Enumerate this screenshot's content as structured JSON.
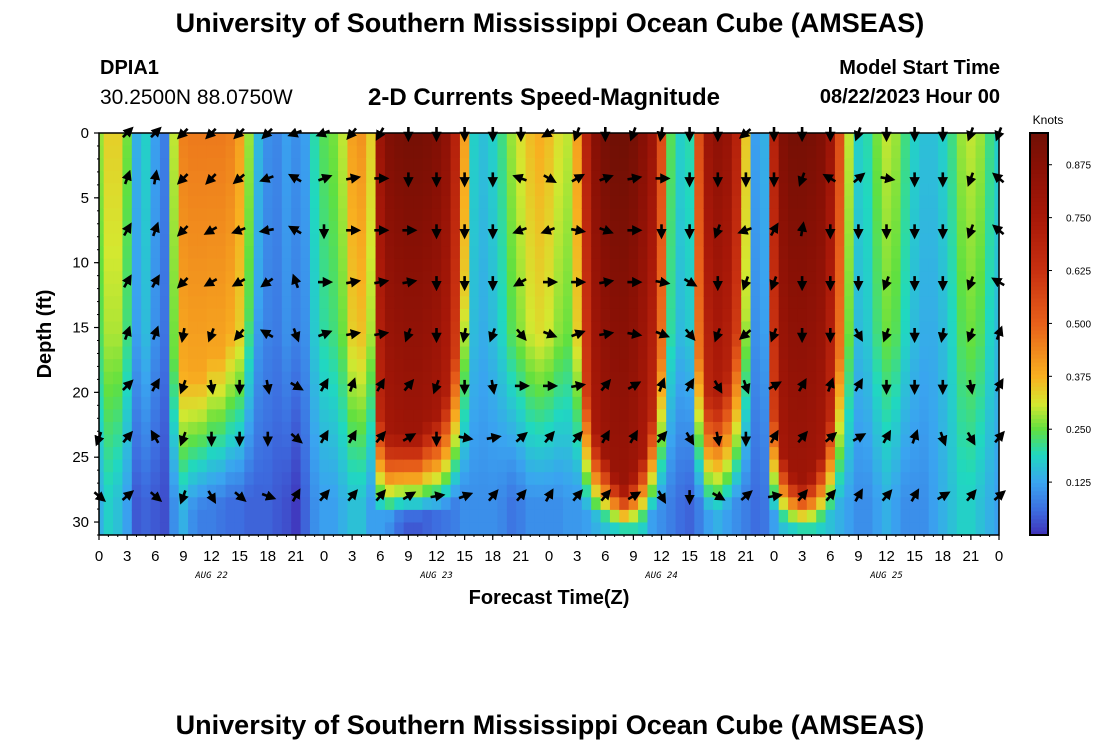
{
  "header": {
    "title": "University of Southern Mississippi Ocean Cube (AMSEAS)",
    "station": "DPIA1",
    "coords": "30.2500N  88.0750W",
    "subtitle": "2-D Currents Speed-Magnitude",
    "model_start_label": "Model Start Time",
    "model_start_value": "08/22/2023 Hour 00"
  },
  "footer": {
    "title": "University of Southern Mississippi Ocean Cube (AMSEAS)"
  },
  "chart_data": {
    "type": "heatmap",
    "title": "2-D Currents Speed-Magnitude",
    "xlabel": "Forecast Time(Z)",
    "ylabel": "Depth (ft)",
    "x_hours_range": [
      0,
      96
    ],
    "y_depth_range": [
      0,
      31
    ],
    "x_tick_labels": [
      "0",
      "3",
      "6",
      "9",
      "12",
      "15",
      "18",
      "21",
      "0",
      "3",
      "6",
      "9",
      "12",
      "15",
      "18",
      "21",
      "0",
      "3",
      "6",
      "9",
      "12",
      "15",
      "18",
      "21",
      "0",
      "3",
      "6",
      "9",
      "12",
      "15",
      "18",
      "21",
      "0"
    ],
    "y_ticks": [
      0,
      5,
      10,
      15,
      20,
      25,
      30
    ],
    "date_labels": [
      {
        "label": "AUG 22",
        "hour": 12
      },
      {
        "label": "AUG 23",
        "hour": 36
      },
      {
        "label": "AUG 24",
        "hour": 60
      },
      {
        "label": "AUG 25",
        "hour": 84
      }
    ],
    "colorbar": {
      "title": "Knots",
      "range": [
        0,
        0.95
      ],
      "ticks": [
        0.125,
        0.25,
        0.375,
        0.5,
        0.625,
        0.75,
        0.875
      ],
      "tick_labels": [
        "0.125",
        "0.250",
        "0.375",
        "0.500",
        "0.625",
        "0.750",
        "0.875"
      ],
      "stops": [
        {
          "v": 0.0,
          "color": "#4030b8"
        },
        {
          "v": 0.06,
          "color": "#3d6ee0"
        },
        {
          "v": 0.125,
          "color": "#3aa4f0"
        },
        {
          "v": 0.19,
          "color": "#20d8c0"
        },
        {
          "v": 0.25,
          "color": "#60e040"
        },
        {
          "v": 0.31,
          "color": "#d4e830"
        },
        {
          "v": 0.375,
          "color": "#f8b020"
        },
        {
          "v": 0.5,
          "color": "#e8601a"
        },
        {
          "v": 0.625,
          "color": "#c83010"
        },
        {
          "v": 0.75,
          "color": "#a81808"
        },
        {
          "v": 0.875,
          "color": "#881005"
        },
        {
          "v": 0.95,
          "color": "#701005"
        }
      ]
    },
    "speed_profiles": [
      {
        "hour": 0,
        "surface": 0.28,
        "bottom": 0.14,
        "decay": 0.5
      },
      {
        "hour": 1,
        "surface": 0.34,
        "bottom": 0.18,
        "decay": 0.5
      },
      {
        "hour": 2,
        "surface": 0.34,
        "bottom": 0.16,
        "decay": 0.5
      },
      {
        "hour": 3,
        "surface": 0.26,
        "bottom": 0.12,
        "decay": 0.5
      },
      {
        "hour": 4,
        "surface": 0.14,
        "bottom": 0.04,
        "decay": 0.5
      },
      {
        "hour": 5,
        "surface": 0.18,
        "bottom": 0.05,
        "decay": 0.5
      },
      {
        "hour": 6,
        "surface": 0.12,
        "bottom": 0.04,
        "decay": 0.5
      },
      {
        "hour": 7,
        "surface": 0.08,
        "bottom": 0.03,
        "decay": 0.5
      },
      {
        "hour": 8,
        "surface": 0.3,
        "bottom": 0.1,
        "decay": 0.55
      },
      {
        "hour": 9,
        "surface": 0.45,
        "bottom": 0.14,
        "decay": 0.6
      },
      {
        "hour": 10,
        "surface": 0.46,
        "bottom": 0.1,
        "decay": 0.6
      },
      {
        "hour": 11,
        "surface": 0.46,
        "bottom": 0.08,
        "decay": 0.6
      },
      {
        "hour": 12,
        "surface": 0.46,
        "bottom": 0.08,
        "decay": 0.55
      },
      {
        "hour": 13,
        "surface": 0.46,
        "bottom": 0.07,
        "decay": 0.55
      },
      {
        "hour": 14,
        "surface": 0.45,
        "bottom": 0.06,
        "decay": 0.5
      },
      {
        "hour": 15,
        "surface": 0.4,
        "bottom": 0.06,
        "decay": 0.5
      },
      {
        "hour": 16,
        "surface": 0.28,
        "bottom": 0.05,
        "decay": 0.45
      },
      {
        "hour": 17,
        "surface": 0.15,
        "bottom": 0.05,
        "decay": 0.4
      },
      {
        "hour": 18,
        "surface": 0.1,
        "bottom": 0.05,
        "decay": 0.5
      },
      {
        "hour": 19,
        "surface": 0.09,
        "bottom": 0.04,
        "decay": 0.5
      },
      {
        "hour": 20,
        "surface": 0.12,
        "bottom": 0.03,
        "decay": 0.5
      },
      {
        "hour": 21,
        "surface": 0.1,
        "bottom": 0.01,
        "decay": 0.5
      },
      {
        "hour": 22,
        "surface": 0.12,
        "bottom": 0.05,
        "decay": 0.5
      },
      {
        "hour": 23,
        "surface": 0.2,
        "bottom": 0.1,
        "decay": 0.5
      },
      {
        "hour": 24,
        "surface": 0.24,
        "bottom": 0.12,
        "decay": 0.5
      },
      {
        "hour": 25,
        "surface": 0.26,
        "bottom": 0.12,
        "decay": 0.5
      },
      {
        "hour": 26,
        "surface": 0.3,
        "bottom": 0.14,
        "decay": 0.5
      },
      {
        "hour": 27,
        "surface": 0.4,
        "bottom": 0.16,
        "decay": 0.5
      },
      {
        "hour": 28,
        "surface": 0.42,
        "bottom": 0.16,
        "decay": 0.5
      },
      {
        "hour": 29,
        "surface": 0.34,
        "bottom": 0.12,
        "decay": 0.5
      },
      {
        "hour": 30,
        "surface": 0.8,
        "bottom": 0.12,
        "decay": 0.7
      },
      {
        "hour": 31,
        "surface": 0.9,
        "bottom": 0.1,
        "decay": 0.75
      },
      {
        "hour": 32,
        "surface": 0.92,
        "bottom": 0.06,
        "decay": 0.75
      },
      {
        "hour": 33,
        "surface": 0.93,
        "bottom": 0.04,
        "decay": 0.75
      },
      {
        "hour": 34,
        "surface": 0.93,
        "bottom": 0.04,
        "decay": 0.75
      },
      {
        "hour": 35,
        "surface": 0.92,
        "bottom": 0.05,
        "decay": 0.72
      },
      {
        "hour": 36,
        "surface": 0.9,
        "bottom": 0.06,
        "decay": 0.7
      },
      {
        "hour": 37,
        "surface": 0.85,
        "bottom": 0.07,
        "decay": 0.65
      },
      {
        "hour": 38,
        "surface": 0.7,
        "bottom": 0.08,
        "decay": 0.55
      },
      {
        "hour": 39,
        "surface": 0.4,
        "bottom": 0.1,
        "decay": 0.4
      },
      {
        "hour": 40,
        "surface": 0.18,
        "bottom": 0.1,
        "decay": 0.5
      },
      {
        "hour": 41,
        "surface": 0.16,
        "bottom": 0.1,
        "decay": 0.5
      },
      {
        "hour": 42,
        "surface": 0.18,
        "bottom": 0.1,
        "decay": 0.5
      },
      {
        "hour": 43,
        "surface": 0.22,
        "bottom": 0.09,
        "decay": 0.5
      },
      {
        "hour": 44,
        "surface": 0.28,
        "bottom": 0.07,
        "decay": 0.5
      },
      {
        "hour": 45,
        "surface": 0.32,
        "bottom": 0.08,
        "decay": 0.5
      },
      {
        "hour": 46,
        "surface": 0.36,
        "bottom": 0.1,
        "decay": 0.5
      },
      {
        "hour": 47,
        "surface": 0.38,
        "bottom": 0.1,
        "decay": 0.5
      },
      {
        "hour": 48,
        "surface": 0.36,
        "bottom": 0.1,
        "decay": 0.5
      },
      {
        "hour": 49,
        "surface": 0.32,
        "bottom": 0.1,
        "decay": 0.5
      },
      {
        "hour": 50,
        "surface": 0.3,
        "bottom": 0.11,
        "decay": 0.5
      },
      {
        "hour": 51,
        "surface": 0.4,
        "bottom": 0.11,
        "decay": 0.5
      },
      {
        "hour": 52,
        "surface": 0.7,
        "bottom": 0.12,
        "decay": 0.65
      },
      {
        "hour": 53,
        "surface": 0.88,
        "bottom": 0.14,
        "decay": 0.75
      },
      {
        "hour": 54,
        "surface": 0.93,
        "bottom": 0.16,
        "decay": 0.8
      },
      {
        "hour": 55,
        "surface": 0.95,
        "bottom": 0.18,
        "decay": 0.85
      },
      {
        "hour": 56,
        "surface": 0.95,
        "bottom": 0.2,
        "decay": 0.88
      },
      {
        "hour": 57,
        "surface": 0.93,
        "bottom": 0.2,
        "decay": 0.85
      },
      {
        "hour": 58,
        "surface": 0.88,
        "bottom": 0.18,
        "decay": 0.8
      },
      {
        "hour": 59,
        "surface": 0.8,
        "bottom": 0.12,
        "decay": 0.7
      },
      {
        "hour": 60,
        "surface": 0.55,
        "bottom": 0.1,
        "decay": 0.55
      },
      {
        "hour": 61,
        "surface": 0.24,
        "bottom": 0.08,
        "decay": 0.5
      },
      {
        "hour": 62,
        "surface": 0.18,
        "bottom": 0.06,
        "decay": 0.5
      },
      {
        "hour": 63,
        "surface": 0.2,
        "bottom": 0.05,
        "decay": 0.5
      },
      {
        "hour": 64,
        "surface": 0.55,
        "bottom": 0.08,
        "decay": 0.55
      },
      {
        "hour": 65,
        "surface": 0.8,
        "bottom": 0.12,
        "decay": 0.65
      },
      {
        "hour": 66,
        "surface": 0.85,
        "bottom": 0.14,
        "decay": 0.65
      },
      {
        "hour": 67,
        "surface": 0.82,
        "bottom": 0.12,
        "decay": 0.6
      },
      {
        "hour": 68,
        "surface": 0.7,
        "bottom": 0.1,
        "decay": 0.5
      },
      {
        "hour": 69,
        "surface": 0.35,
        "bottom": 0.08,
        "decay": 0.45
      },
      {
        "hour": 70,
        "surface": 0.12,
        "bottom": 0.06,
        "decay": 0.5
      },
      {
        "hour": 71,
        "surface": 0.14,
        "bottom": 0.07,
        "decay": 0.5
      },
      {
        "hour": 72,
        "surface": 0.7,
        "bottom": 0.12,
        "decay": 0.7
      },
      {
        "hour": 73,
        "surface": 0.9,
        "bottom": 0.16,
        "decay": 0.8
      },
      {
        "hour": 74,
        "surface": 0.93,
        "bottom": 0.18,
        "decay": 0.85
      },
      {
        "hour": 75,
        "surface": 0.93,
        "bottom": 0.2,
        "decay": 0.87
      },
      {
        "hour": 76,
        "surface": 0.92,
        "bottom": 0.2,
        "decay": 0.85
      },
      {
        "hour": 77,
        "surface": 0.9,
        "bottom": 0.18,
        "decay": 0.8
      },
      {
        "hour": 78,
        "surface": 0.8,
        "bottom": 0.16,
        "decay": 0.7
      },
      {
        "hour": 79,
        "surface": 0.55,
        "bottom": 0.14,
        "decay": 0.55
      },
      {
        "hour": 80,
        "surface": 0.3,
        "bottom": 0.12,
        "decay": 0.5
      },
      {
        "hour": 81,
        "surface": 0.18,
        "bottom": 0.1,
        "decay": 0.5
      },
      {
        "hour": 82,
        "surface": 0.2,
        "bottom": 0.1,
        "decay": 0.5
      },
      {
        "hour": 83,
        "surface": 0.26,
        "bottom": 0.12,
        "decay": 0.5
      },
      {
        "hour": 84,
        "surface": 0.3,
        "bottom": 0.14,
        "decay": 0.5
      },
      {
        "hour": 85,
        "surface": 0.28,
        "bottom": 0.12,
        "decay": 0.5
      },
      {
        "hour": 86,
        "surface": 0.22,
        "bottom": 0.1,
        "decay": 0.5
      },
      {
        "hour": 87,
        "surface": 0.18,
        "bottom": 0.1,
        "decay": 0.5
      },
      {
        "hour": 88,
        "surface": 0.16,
        "bottom": 0.1,
        "decay": 0.5
      },
      {
        "hour": 89,
        "surface": 0.16,
        "bottom": 0.12,
        "decay": 0.5
      },
      {
        "hour": 90,
        "surface": 0.18,
        "bottom": 0.14,
        "decay": 0.5
      },
      {
        "hour": 91,
        "surface": 0.22,
        "bottom": 0.16,
        "decay": 0.5
      },
      {
        "hour": 92,
        "surface": 0.28,
        "bottom": 0.18,
        "decay": 0.5
      },
      {
        "hour": 93,
        "surface": 0.3,
        "bottom": 0.18,
        "decay": 0.5
      },
      {
        "hour": 94,
        "surface": 0.28,
        "bottom": 0.16,
        "decay": 0.5
      },
      {
        "hour": 95,
        "surface": 0.22,
        "bottom": 0.14,
        "decay": 0.5
      },
      {
        "hour": 96,
        "surface": 0.18,
        "bottom": 0.12,
        "decay": 0.5
      }
    ],
    "vector_depths": [
      0,
      3.5,
      7.5,
      11.5,
      15.5,
      19.5,
      23.5,
      28
    ],
    "vector_hours": [
      0,
      3,
      6,
      9,
      12,
      15,
      18,
      21,
      24,
      27,
      30,
      33,
      36,
      39,
      42,
      45,
      48,
      51,
      54,
      57,
      60,
      63,
      66,
      69,
      72,
      75,
      78,
      81,
      84,
      87,
      90,
      93,
      96
    ],
    "vector_directions_deg": [
      [
        null,
        45,
        45,
        225,
        225,
        225,
        225,
        250,
        250,
        220,
        210,
        180,
        180,
        180,
        180,
        180,
        240,
        200,
        180,
        200,
        190,
        180,
        180,
        230,
        180,
        180,
        180,
        200,
        180,
        180,
        180,
        200,
        200
      ],
      [
        null,
        20,
        10,
        225,
        225,
        230,
        250,
        300,
        70,
        80,
        90,
        180,
        180,
        180,
        180,
        290,
        120,
        60,
        70,
        80,
        90,
        180,
        180,
        180,
        180,
        200,
        300,
        50,
        100,
        180,
        180,
        200,
        310
      ],
      [
        null,
        30,
        20,
        225,
        240,
        250,
        260,
        300,
        180,
        90,
        90,
        90,
        180,
        180,
        180,
        250,
        250,
        100,
        110,
        90,
        180,
        180,
        200,
        250,
        30,
        10,
        180,
        180,
        180,
        180,
        180,
        200,
        310
      ],
      [
        null,
        30,
        30,
        225,
        240,
        240,
        235,
        340,
        90,
        80,
        80,
        80,
        180,
        180,
        180,
        240,
        90,
        90,
        80,
        90,
        100,
        120,
        180,
        200,
        200,
        180,
        180,
        180,
        200,
        180,
        180,
        200,
        300
      ],
      [
        null,
        20,
        20,
        190,
        200,
        220,
        300,
        160,
        70,
        80,
        80,
        200,
        180,
        190,
        200,
        140,
        110,
        70,
        80,
        100,
        110,
        140,
        200,
        230,
        200,
        180,
        180,
        150,
        200,
        180,
        190,
        200,
        20
      ],
      [
        null,
        45,
        30,
        200,
        170,
        180,
        170,
        120,
        30,
        20,
        30,
        40,
        200,
        180,
        170,
        90,
        90,
        80,
        40,
        60,
        20,
        30,
        150,
        160,
        60,
        30,
        20,
        30,
        180,
        180,
        180,
        170,
        30
      ],
      [
        200,
        40,
        330,
        200,
        180,
        180,
        180,
        130,
        30,
        30,
        40,
        60,
        180,
        100,
        80,
        50,
        40,
        40,
        30,
        30,
        40,
        150,
        170,
        180,
        30,
        40,
        50,
        60,
        30,
        20,
        160,
        150,
        40
      ],
      [
        130,
        50,
        130,
        200,
        150,
        130,
        110,
        30,
        40,
        40,
        40,
        60,
        80,
        70,
        40,
        40,
        30,
        40,
        40,
        60,
        150,
        180,
        120,
        50,
        80,
        40,
        40,
        30,
        40,
        30,
        60,
        40,
        50
      ]
    ]
  }
}
